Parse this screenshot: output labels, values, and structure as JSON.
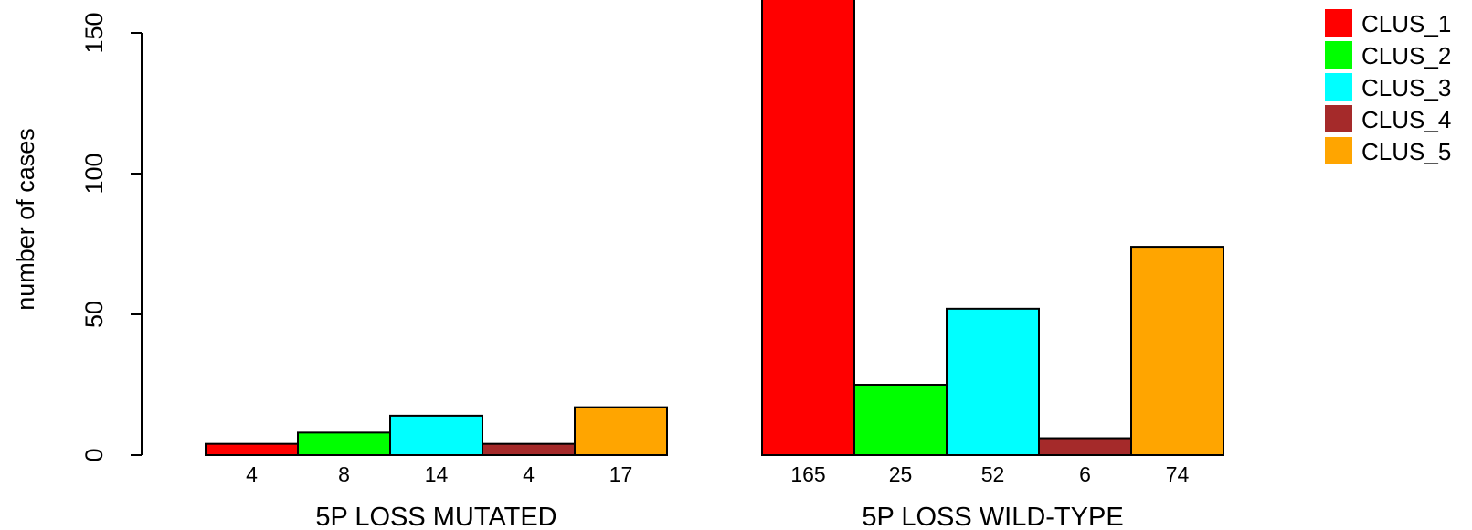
{
  "chart_data": {
    "type": "bar",
    "ylabel": "number of cases",
    "ylim": [
      0,
      165
    ],
    "yticks": [
      0,
      50,
      100,
      150
    ],
    "grid": false,
    "legend_position": "top-right",
    "groups": [
      "5P LOSS MUTATED",
      "5P LOSS WILD-TYPE"
    ],
    "series": [
      {
        "name": "CLUS_1",
        "color": "#ff0000",
        "values": [
          4,
          165
        ]
      },
      {
        "name": "CLUS_2",
        "color": "#00ff00",
        "values": [
          8,
          25
        ]
      },
      {
        "name": "CLUS_3",
        "color": "#00ffff",
        "values": [
          14,
          52
        ]
      },
      {
        "name": "CLUS_4",
        "color": "#a52a2a",
        "values": [
          4,
          6
        ]
      },
      {
        "name": "CLUS_5",
        "color": "#ffa500",
        "values": [
          17,
          74
        ]
      }
    ]
  }
}
